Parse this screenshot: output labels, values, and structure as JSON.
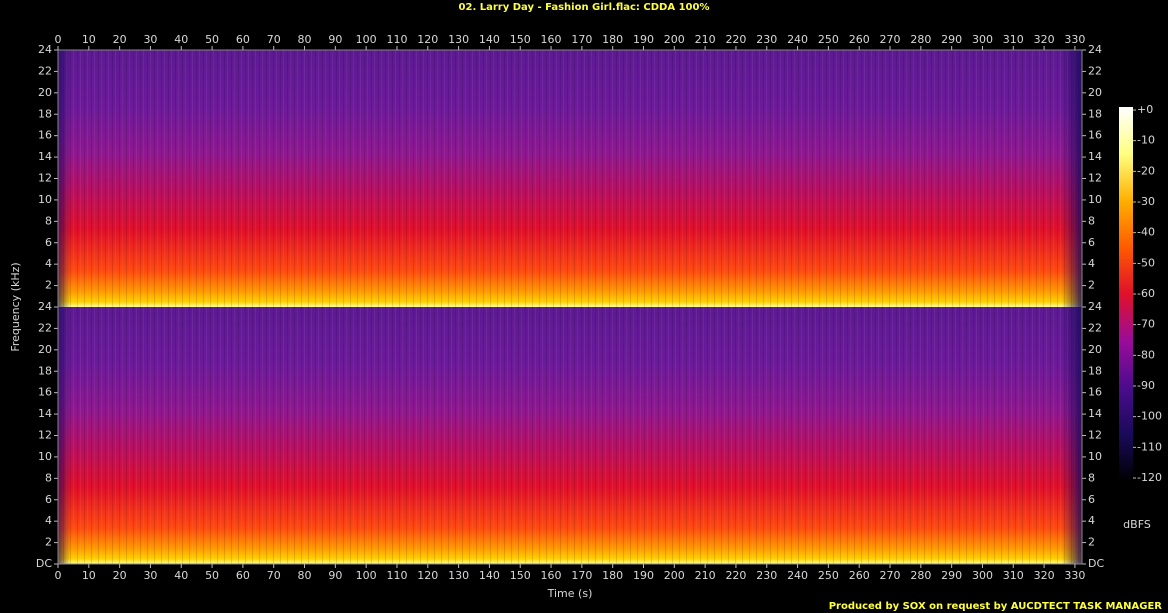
{
  "chart_data": {
    "type": "spectrogram",
    "title": "02. Larry Day - Fashion Girl.flac: CDDA 100%",
    "x_label": "Time (s)",
    "y_label": "Frequency (kHz)",
    "xlim": [
      0,
      332.3
    ],
    "xticks": [
      0,
      10,
      20,
      30,
      40,
      50,
      60,
      70,
      80,
      90,
      100,
      110,
      120,
      130,
      140,
      150,
      160,
      170,
      180,
      190,
      200,
      210,
      220,
      230,
      240,
      250,
      260,
      270,
      280,
      290,
      300,
      310,
      320,
      330
    ],
    "channels": [
      {
        "ylim": [
          0,
          24
        ],
        "yticks": [
          2,
          4,
          6,
          8,
          10,
          12,
          14,
          16,
          18,
          20,
          22,
          24
        ]
      },
      {
        "ylim": [
          0,
          24
        ],
        "yticks": [
          {
            "value": 0,
            "label": "DC"
          },
          2,
          4,
          6,
          8,
          10,
          12,
          14,
          16,
          18,
          20,
          22,
          24
        ]
      }
    ],
    "colorbar": {
      "label": "dBFS",
      "lim": [
        -120,
        0
      ],
      "ticks": [
        {
          "value": 0,
          "label": "+0"
        },
        -10,
        -20,
        -30,
        -40,
        -50,
        -60,
        -70,
        -80,
        -90,
        -100,
        -110,
        -120
      ],
      "colormap": [
        "#000000",
        "#1a0a5a",
        "#4b0c8c",
        "#9a0c9a",
        "#e0102a",
        "#ff5a00",
        "#ffb000",
        "#ffff80",
        "#ffffff"
      ]
    },
    "footer": "Produced by SOX on request by AUCDTECT TASK MANAGER"
  }
}
